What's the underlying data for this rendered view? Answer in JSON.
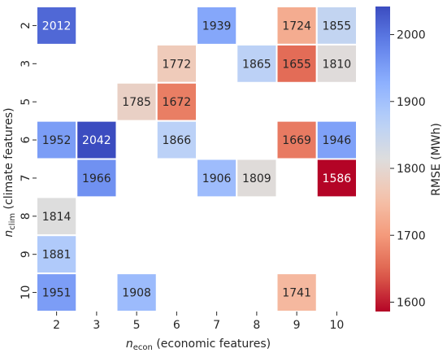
{
  "chart_data": {
    "type": "heatmap",
    "title": "",
    "xlabel": {
      "prefix": "n",
      "sub": "econ",
      "rest": " (economic features)"
    },
    "ylabel": {
      "prefix": "n",
      "sub": "clim",
      "rest": " (climate features)"
    },
    "x_categories": [
      "2",
      "3",
      "5",
      "6",
      "7",
      "8",
      "9",
      "10"
    ],
    "y_categories": [
      "2",
      "3",
      "5",
      "6",
      "7",
      "8",
      "9",
      "10"
    ],
    "cells": [
      {
        "x": "2",
        "y": "2",
        "value": 2012
      },
      {
        "x": "7",
        "y": "2",
        "value": 1939
      },
      {
        "x": "9",
        "y": "2",
        "value": 1724
      },
      {
        "x": "10",
        "y": "2",
        "value": 1855
      },
      {
        "x": "6",
        "y": "3",
        "value": 1772
      },
      {
        "x": "8",
        "y": "3",
        "value": 1865
      },
      {
        "x": "9",
        "y": "3",
        "value": 1655
      },
      {
        "x": "10",
        "y": "3",
        "value": 1810
      },
      {
        "x": "5",
        "y": "5",
        "value": 1785
      },
      {
        "x": "6",
        "y": "5",
        "value": 1672
      },
      {
        "x": "2",
        "y": "6",
        "value": 1952
      },
      {
        "x": "3",
        "y": "6",
        "value": 2042
      },
      {
        "x": "6",
        "y": "6",
        "value": 1866
      },
      {
        "x": "9",
        "y": "6",
        "value": 1669
      },
      {
        "x": "10",
        "y": "6",
        "value": 1946
      },
      {
        "x": "3",
        "y": "7",
        "value": 1966
      },
      {
        "x": "7",
        "y": "7",
        "value": 1906
      },
      {
        "x": "8",
        "y": "7",
        "value": 1809
      },
      {
        "x": "10",
        "y": "7",
        "value": 1586
      },
      {
        "x": "2",
        "y": "8",
        "value": 1814
      },
      {
        "x": "2",
        "y": "9",
        "value": 1881
      },
      {
        "x": "2",
        "y": "10",
        "value": 1951
      },
      {
        "x": "5",
        "y": "10",
        "value": 1908
      },
      {
        "x": "9",
        "y": "10",
        "value": 1741
      }
    ],
    "colorbar": {
      "label": "RMSE (MWh)",
      "colormap": "coolwarm_r",
      "vmin": 1586,
      "vmax": 2042,
      "ticks": [
        "1600",
        "1700",
        "1800",
        "1900",
        "2000"
      ]
    },
    "grid": false,
    "legend": "colorbar-right"
  }
}
